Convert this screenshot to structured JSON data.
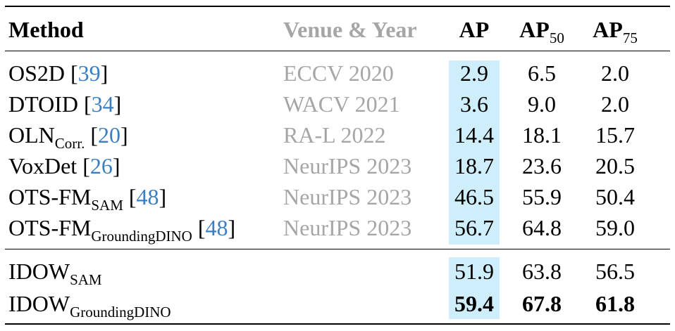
{
  "table": {
    "headers": {
      "method": "Method",
      "venue": "Venue & Year",
      "ap": "AP",
      "ap50_base": "AP",
      "ap50_sub": "50",
      "ap75_base": "AP",
      "ap75_sub": "75"
    },
    "rows": [
      {
        "name": "OS2D",
        "sub": "",
        "cite": "39",
        "venue": "ECCV 2020",
        "ap": "2.9",
        "ap50": "6.5",
        "ap75": "2.0"
      },
      {
        "name": "DTOID",
        "sub": "",
        "cite": "34",
        "venue": "WACV 2021",
        "ap": "3.6",
        "ap50": "9.0",
        "ap75": "2.0"
      },
      {
        "name": "OLN",
        "sub": "Corr.",
        "cite": "20",
        "venue": "RA-L 2022",
        "ap": "14.4",
        "ap50": "18.1",
        "ap75": "15.7"
      },
      {
        "name": "VoxDet",
        "sub": "",
        "cite": "26",
        "venue": "NeurIPS 2023",
        "ap": "18.7",
        "ap50": "23.6",
        "ap75": "20.5"
      },
      {
        "name": "OTS-FM",
        "sub": "SAM",
        "cite": "48",
        "venue": "NeurIPS 2023",
        "ap": "46.5",
        "ap50": "55.9",
        "ap75": "50.4"
      },
      {
        "name": "OTS-FM",
        "sub": "GroundingDINO",
        "cite": "48",
        "venue": "NeurIPS 2023",
        "ap": "56.7",
        "ap50": "64.8",
        "ap75": "59.0"
      }
    ],
    "ours": [
      {
        "name": "IDOW",
        "sub": "SAM",
        "ap": "51.9",
        "ap50": "63.8",
        "ap75": "56.5",
        "bold": false
      },
      {
        "name": "IDOW",
        "sub": "GroundingDINO",
        "ap": "59.4",
        "ap50": "67.8",
        "ap75": "61.8",
        "bold": true
      }
    ],
    "highlight_color": "#cdeefa",
    "citation_color": "#3a7fc1",
    "venue_color": "#a6a6a6"
  }
}
